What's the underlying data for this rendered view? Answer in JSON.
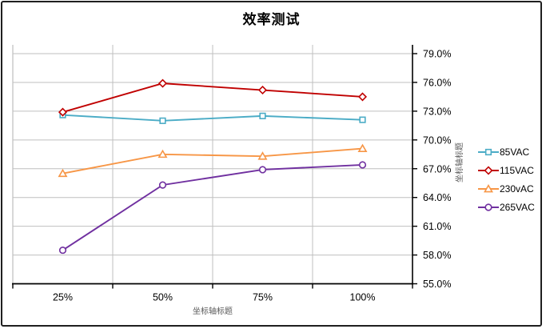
{
  "window": {
    "background": "#ffffff",
    "border_color": "#1f1f1f"
  },
  "chart_data": {
    "type": "line",
    "title": "效率测试",
    "xlabel": "坐标轴标题",
    "ylabel": "坐标轴标题",
    "categories": [
      "25%",
      "50%",
      "75%",
      "100%"
    ],
    "series": [
      {
        "name": "85VAC",
        "color": "#4BACC6",
        "marker": "square",
        "values": [
          72.6,
          72.0,
          72.5,
          72.1
        ]
      },
      {
        "name": "115VAC",
        "color": "#C00000",
        "marker": "diamond",
        "values": [
          72.9,
          75.9,
          75.2,
          74.5
        ]
      },
      {
        "name": "230vAC",
        "color": "#F79646",
        "marker": "triangle",
        "values": [
          66.5,
          68.5,
          68.3,
          69.1
        ]
      },
      {
        "name": "265VAC",
        "color": "#7030A0",
        "marker": "circle",
        "values": [
          58.5,
          65.3,
          66.9,
          67.4
        ]
      }
    ],
    "y_axis": {
      "side": "right",
      "min": 55,
      "max": 79,
      "step": 3,
      "labels": [
        "79.0%",
        "76.0%",
        "73.0%",
        "70.0%",
        "67.0%",
        "64.0%",
        "61.0%",
        "58.0%",
        "55.0%"
      ]
    },
    "x_axis": {
      "labels": [
        "25%",
        "50%",
        "75%",
        "100%"
      ]
    },
    "legend_position": "right",
    "grid": {
      "horizontal": true,
      "vertical": true,
      "color": "#BFBFBF"
    },
    "axis_color": "#000000",
    "label_color": "#000000",
    "axis_title_color": "#595959"
  }
}
